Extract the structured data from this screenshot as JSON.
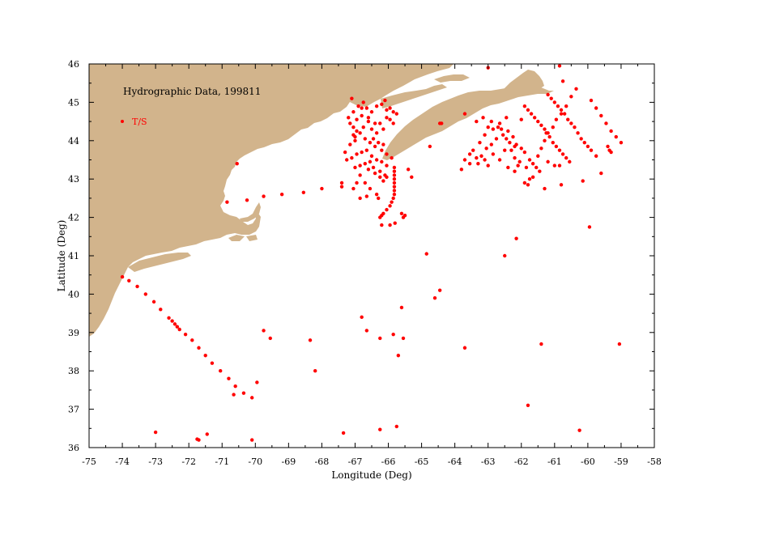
{
  "map": {
    "title": "Hydrographic Data, 199811",
    "legend_label": "T/S",
    "xlabel": "Longitude (Deg)",
    "ylabel": "Latitude (Deg)",
    "land_color": "#d2b48c",
    "point_color": "#ff0000"
  },
  "chart_data": {
    "type": "scatter",
    "title": "Hydrographic Data, 199811",
    "xlabel": "Longitude (Deg)",
    "ylabel": "Latitude (Deg)",
    "xlim": [
      -75,
      -58
    ],
    "ylim": [
      36,
      46
    ],
    "xticks": [
      "-75",
      "-74",
      "-73",
      "-72",
      "-71",
      "-70",
      "-69",
      "-68",
      "-67",
      "-66",
      "-65",
      "-64",
      "-63",
      "-62",
      "-61",
      "-60",
      "-59",
      "-58"
    ],
    "yticks": [
      "36",
      "37",
      "38",
      "39",
      "40",
      "41",
      "42",
      "43",
      "44",
      "45",
      "46"
    ],
    "grid": false,
    "legend_placement": "top-left",
    "series": [
      {
        "name": "T/S",
        "color": "#ff0000",
        "points": [
          [
            -74.0,
            40.45
          ],
          [
            -73.8,
            40.35
          ],
          [
            -73.55,
            40.2
          ],
          [
            -73.3,
            40.0
          ],
          [
            -73.05,
            39.8
          ],
          [
            -72.85,
            39.6
          ],
          [
            -72.6,
            39.38
          ],
          [
            -72.5,
            39.3
          ],
          [
            -72.42,
            39.22
          ],
          [
            -72.35,
            39.15
          ],
          [
            -72.28,
            39.08
          ],
          [
            -72.1,
            38.95
          ],
          [
            -71.9,
            38.8
          ],
          [
            -71.7,
            38.6
          ],
          [
            -71.5,
            38.4
          ],
          [
            -71.3,
            38.2
          ],
          [
            -71.05,
            38.0
          ],
          [
            -70.8,
            37.8
          ],
          [
            -70.6,
            37.6
          ],
          [
            -70.65,
            37.38
          ],
          [
            -70.35,
            37.42
          ],
          [
            -70.1,
            37.3
          ],
          [
            -69.95,
            37.7
          ],
          [
            -73.0,
            36.4
          ],
          [
            -71.75,
            36.22
          ],
          [
            -71.7,
            36.2
          ],
          [
            -71.45,
            36.35
          ],
          [
            -70.1,
            36.2
          ],
          [
            -69.75,
            39.05
          ],
          [
            -69.55,
            38.85
          ],
          [
            -68.35,
            38.8
          ],
          [
            -68.2,
            38.0
          ],
          [
            -67.35,
            36.38
          ],
          [
            -66.25,
            36.47
          ],
          [
            -65.75,
            36.55
          ],
          [
            -66.65,
            39.05
          ],
          [
            -66.8,
            39.4
          ],
          [
            -66.25,
            38.85
          ],
          [
            -65.85,
            38.95
          ],
          [
            -65.7,
            38.4
          ],
          [
            -65.55,
            38.85
          ],
          [
            -65.6,
            39.65
          ],
          [
            -64.6,
            39.9
          ],
          [
            -64.45,
            40.1
          ],
          [
            -64.85,
            41.05
          ],
          [
            -63.7,
            38.6
          ],
          [
            -62.5,
            41.0
          ],
          [
            -62.15,
            41.45
          ],
          [
            -61.8,
            37.1
          ],
          [
            -61.4,
            38.7
          ],
          [
            -60.25,
            36.45
          ],
          [
            -59.95,
            41.75
          ],
          [
            -59.05,
            38.7
          ],
          [
            -70.55,
            43.4
          ],
          [
            -70.85,
            42.4
          ],
          [
            -70.25,
            42.45
          ],
          [
            -69.75,
            42.55
          ],
          [
            -69.2,
            42.6
          ],
          [
            -68.55,
            42.65
          ],
          [
            -68.0,
            42.75
          ],
          [
            -67.4,
            42.8
          ],
          [
            -67.4,
            42.9
          ],
          [
            -67.05,
            42.75
          ],
          [
            -66.85,
            42.5
          ],
          [
            -66.65,
            42.55
          ],
          [
            -66.3,
            42.5
          ],
          [
            -66.2,
            41.8
          ],
          [
            -65.95,
            41.8
          ],
          [
            -65.8,
            41.85
          ],
          [
            -66.25,
            42.0
          ],
          [
            -66.2,
            42.05
          ],
          [
            -66.15,
            42.1
          ],
          [
            -66.05,
            42.2
          ],
          [
            -65.95,
            42.3
          ],
          [
            -65.9,
            42.4
          ],
          [
            -65.85,
            42.5
          ],
          [
            -65.82,
            42.6
          ],
          [
            -65.82,
            42.7
          ],
          [
            -65.82,
            42.8
          ],
          [
            -65.82,
            42.9
          ],
          [
            -65.82,
            43.0
          ],
          [
            -65.82,
            43.1
          ],
          [
            -65.82,
            43.2
          ],
          [
            -65.82,
            43.3
          ],
          [
            -65.6,
            42.1
          ],
          [
            -65.55,
            42.0
          ],
          [
            -65.5,
            42.05
          ],
          [
            -65.9,
            43.55
          ],
          [
            -66.05,
            43.35
          ],
          [
            -65.4,
            43.25
          ],
          [
            -65.3,
            43.05
          ],
          [
            -67.05,
            44.15
          ],
          [
            -67.05,
            44.35
          ],
          [
            -67.0,
            44.0
          ],
          [
            -66.95,
            44.55
          ],
          [
            -66.9,
            44.9
          ],
          [
            -66.8,
            44.85
          ],
          [
            -66.75,
            45.0
          ],
          [
            -66.65,
            44.85
          ],
          [
            -66.6,
            44.6
          ],
          [
            -66.5,
            44.75
          ],
          [
            -66.4,
            44.45
          ],
          [
            -66.35,
            44.9
          ],
          [
            -66.2,
            44.95
          ],
          [
            -66.1,
            45.05
          ],
          [
            -66.05,
            44.8
          ],
          [
            -65.95,
            44.85
          ],
          [
            -65.85,
            44.75
          ],
          [
            -65.75,
            44.7
          ],
          [
            -66.8,
            44.65
          ],
          [
            -66.6,
            44.5
          ],
          [
            -66.5,
            44.3
          ],
          [
            -66.35,
            44.2
          ],
          [
            -66.25,
            44.45
          ],
          [
            -66.15,
            44.3
          ],
          [
            -66.05,
            44.6
          ],
          [
            -65.95,
            44.55
          ],
          [
            -65.85,
            44.45
          ],
          [
            -67.3,
            43.7
          ],
          [
            -67.15,
            43.9
          ],
          [
            -67.0,
            44.1
          ],
          [
            -66.85,
            44.2
          ],
          [
            -66.7,
            44.05
          ],
          [
            -66.55,
            43.95
          ],
          [
            -66.4,
            43.85
          ],
          [
            -66.2,
            43.75
          ],
          [
            -66.05,
            43.65
          ],
          [
            -67.25,
            43.5
          ],
          [
            -67.1,
            43.55
          ],
          [
            -66.95,
            43.65
          ],
          [
            -66.8,
            43.7
          ],
          [
            -66.65,
            43.75
          ],
          [
            -66.5,
            43.6
          ],
          [
            -66.35,
            43.5
          ],
          [
            -66.2,
            43.45
          ],
          [
            -67.0,
            43.3
          ],
          [
            -66.85,
            43.35
          ],
          [
            -66.7,
            43.4
          ],
          [
            -66.55,
            43.45
          ],
          [
            -66.45,
            43.3
          ],
          [
            -66.25,
            43.2
          ],
          [
            -66.1,
            43.1
          ],
          [
            -67.05,
            44.75
          ],
          [
            -67.1,
            45.1
          ],
          [
            -67.2,
            44.6
          ],
          [
            -67.15,
            44.45
          ],
          [
            -66.95,
            44.25
          ],
          [
            -66.75,
            44.35
          ],
          [
            -66.45,
            44.05
          ],
          [
            -66.3,
            43.95
          ],
          [
            -66.15,
            43.9
          ],
          [
            -66.85,
            43.1
          ],
          [
            -66.7,
            42.9
          ],
          [
            -66.55,
            42.75
          ],
          [
            -66.35,
            42.6
          ],
          [
            -66.15,
            42.95
          ],
          [
            -66.05,
            43.05
          ],
          [
            -66.95,
            42.9
          ],
          [
            -66.25,
            43.05
          ],
          [
            -66.4,
            43.15
          ],
          [
            -66.6,
            43.25
          ],
          [
            -64.75,
            43.85
          ],
          [
            -64.45,
            44.45
          ],
          [
            -64.4,
            44.45
          ],
          [
            -63.35,
            44.5
          ],
          [
            -63.7,
            44.7
          ],
          [
            -63.15,
            44.6
          ],
          [
            -63.0,
            45.9
          ],
          [
            -62.9,
            44.5
          ],
          [
            -62.7,
            44.35
          ],
          [
            -62.6,
            44.3
          ],
          [
            -62.4,
            44.25
          ],
          [
            -62.25,
            44.1
          ],
          [
            -62.15,
            43.9
          ],
          [
            -62.0,
            43.8
          ],
          [
            -61.9,
            43.7
          ],
          [
            -61.75,
            43.5
          ],
          [
            -61.65,
            43.4
          ],
          [
            -61.55,
            43.3
          ],
          [
            -61.45,
            43.2
          ],
          [
            -61.2,
            43.45
          ],
          [
            -61.0,
            43.35
          ],
          [
            -60.85,
            43.35
          ],
          [
            -61.75,
            43.0
          ],
          [
            -61.85,
            43.3
          ],
          [
            -62.05,
            43.45
          ],
          [
            -62.2,
            43.55
          ],
          [
            -62.3,
            43.75
          ],
          [
            -62.45,
            44.05
          ],
          [
            -62.55,
            44.15
          ],
          [
            -62.65,
            44.45
          ],
          [
            -62.85,
            44.3
          ],
          [
            -63.1,
            44.15
          ],
          [
            -63.25,
            43.95
          ],
          [
            -63.45,
            43.75
          ],
          [
            -63.55,
            43.65
          ],
          [
            -63.7,
            43.5
          ],
          [
            -63.8,
            43.25
          ],
          [
            -63.55,
            43.4
          ],
          [
            -63.3,
            43.4
          ],
          [
            -63.1,
            43.5
          ],
          [
            -63.0,
            43.35
          ],
          [
            -62.85,
            43.65
          ],
          [
            -62.65,
            43.5
          ],
          [
            -62.5,
            43.75
          ],
          [
            -62.35,
            43.95
          ],
          [
            -62.2,
            43.85
          ],
          [
            -62.1,
            43.35
          ],
          [
            -62.4,
            43.3
          ],
          [
            -62.2,
            43.2
          ],
          [
            -61.9,
            42.9
          ],
          [
            -61.8,
            42.85
          ],
          [
            -61.65,
            43.05
          ],
          [
            -61.5,
            43.6
          ],
          [
            -61.4,
            43.8
          ],
          [
            -61.3,
            44.0
          ],
          [
            -61.2,
            44.2
          ],
          [
            -61.05,
            44.35
          ],
          [
            -60.95,
            44.55
          ],
          [
            -60.8,
            44.7
          ],
          [
            -60.65,
            44.9
          ],
          [
            -60.5,
            45.15
          ],
          [
            -60.35,
            45.35
          ],
          [
            -60.75,
            45.55
          ],
          [
            -60.85,
            45.95
          ],
          [
            -61.9,
            44.9
          ],
          [
            -61.8,
            44.8
          ],
          [
            -61.7,
            44.7
          ],
          [
            -61.6,
            44.6
          ],
          [
            -61.5,
            44.5
          ],
          [
            -61.4,
            44.4
          ],
          [
            -61.3,
            44.3
          ],
          [
            -61.25,
            44.2
          ],
          [
            -61.15,
            44.1
          ],
          [
            -61.05,
            43.95
          ],
          [
            -60.95,
            43.85
          ],
          [
            -60.85,
            43.75
          ],
          [
            -60.75,
            43.65
          ],
          [
            -60.65,
            43.55
          ],
          [
            -60.55,
            43.45
          ],
          [
            -61.2,
            45.2
          ],
          [
            -61.1,
            45.1
          ],
          [
            -61.0,
            45.0
          ],
          [
            -60.9,
            44.9
          ],
          [
            -60.8,
            44.8
          ],
          [
            -60.7,
            44.7
          ],
          [
            -60.6,
            44.55
          ],
          [
            -60.5,
            44.45
          ],
          [
            -60.4,
            44.35
          ],
          [
            -60.3,
            44.2
          ],
          [
            -60.2,
            44.05
          ],
          [
            -60.1,
            43.95
          ],
          [
            -60.0,
            43.85
          ],
          [
            -59.9,
            43.75
          ],
          [
            -59.75,
            43.6
          ],
          [
            -59.9,
            45.05
          ],
          [
            -59.75,
            44.85
          ],
          [
            -59.6,
            44.65
          ],
          [
            -59.45,
            44.45
          ],
          [
            -59.3,
            44.25
          ],
          [
            -59.15,
            44.1
          ],
          [
            -59.0,
            43.95
          ],
          [
            -59.4,
            43.85
          ],
          [
            -59.35,
            43.75
          ],
          [
            -59.3,
            43.7
          ],
          [
            -59.6,
            43.15
          ],
          [
            -60.15,
            42.95
          ],
          [
            -60.8,
            42.85
          ],
          [
            -61.3,
            42.75
          ],
          [
            -62.0,
            44.55
          ],
          [
            -62.45,
            44.6
          ],
          [
            -63.05,
            43.8
          ],
          [
            -63.2,
            43.6
          ],
          [
            -63.35,
            43.55
          ],
          [
            -63.0,
            44.35
          ],
          [
            -62.75,
            44.05
          ],
          [
            -62.9,
            43.9
          ]
        ]
      }
    ]
  }
}
